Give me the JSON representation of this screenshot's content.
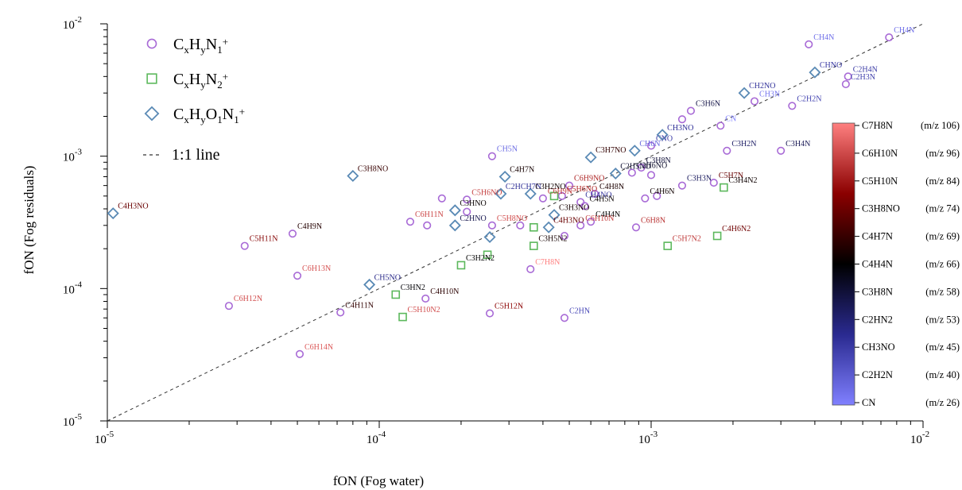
{
  "chart_data": {
    "type": "scatter",
    "xlabel": "fON (Fog water)",
    "ylabel": "fON (Fog residuals)",
    "x_scale": "log",
    "y_scale": "log",
    "xlim": [
      1e-05,
      0.01
    ],
    "ylim": [
      1e-05,
      0.01
    ],
    "ticks": [
      {
        "value": 1e-05,
        "base": "10",
        "exp": "-5"
      },
      {
        "value": 0.0001,
        "base": "10",
        "exp": "-4"
      },
      {
        "value": 0.001,
        "base": "10",
        "exp": "-3"
      },
      {
        "value": 0.01,
        "base": "10",
        "exp": "-2"
      }
    ],
    "reference_line": {
      "label": "1:1 line",
      "style": "dashed",
      "color": "#333333"
    },
    "legend": {
      "placement": "top-left",
      "entries": [
        {
          "marker": "circle",
          "color": "#a86ad6",
          "base": "C",
          "sub1": "x",
          "h": "H",
          "sub2": "y",
          "n": "N",
          "sub3": "1",
          "sup": "+"
        },
        {
          "marker": "square",
          "color": "#5cb85c",
          "base": "C",
          "sub1": "x",
          "h": "H",
          "sub2": "y",
          "n": "N",
          "sub3": "2",
          "sup": "+"
        },
        {
          "marker": "diamond",
          "color": "#5a8ab5",
          "base": "C",
          "sub1": "x",
          "h": "H",
          "sub2": "y",
          "o": "O",
          "sub3": "1",
          "n": "N",
          "sub4": "1",
          "sup": "+"
        }
      ]
    },
    "colorbar": {
      "label_entries": [
        {
          "name": "C7H8N",
          "mz": "(m/z 106)"
        },
        {
          "name": "C6H10N",
          "mz": "(m/z 96)"
        },
        {
          "name": "C5H10N",
          "mz": "(m/z 84)"
        },
        {
          "name": "C3H8NO",
          "mz": "(m/z 74)"
        },
        {
          "name": "C4H7N",
          "mz": "(m/z 69)"
        },
        {
          "name": "C4H4N",
          "mz": "(m/z 66)"
        },
        {
          "name": "C3H8N",
          "mz": "(m/z 58)"
        },
        {
          "name": "C2HN2",
          "mz": "(m/z 53)"
        },
        {
          "name": "CH3NO",
          "mz": "(m/z 45)"
        },
        {
          "name": "C2H2N",
          "mz": "(m/z 40)"
        },
        {
          "name": "CN",
          "mz": "(m/z 26)"
        }
      ],
      "mz_range": [
        26,
        106
      ],
      "color_stops": [
        "#8080ff",
        "#2a2a90",
        "#000000",
        "#8b0000",
        "#ff8080"
      ]
    },
    "series": [
      {
        "marker": "circle",
        "color": "#a86ad6",
        "points": [
          {
            "x": 0.0075,
            "y": 0.0079,
            "label": "CH4N",
            "mz": 30
          },
          {
            "x": 0.0038,
            "y": 0.007,
            "label": "CH4N",
            "mz": 30
          },
          {
            "x": 0.0053,
            "y": 0.004,
            "label": "C2H4N",
            "mz": 42
          },
          {
            "x": 0.0052,
            "y": 0.0035,
            "label": "C2H3N",
            "mz": 41
          },
          {
            "x": 0.0024,
            "y": 0.0026,
            "label": "CH3N",
            "mz": 29
          },
          {
            "x": 0.0033,
            "y": 0.0024,
            "label": "C2H2N",
            "mz": 40
          },
          {
            "x": 0.0018,
            "y": 0.0017,
            "label": "CN",
            "mz": 26
          },
          {
            "x": 0.0014,
            "y": 0.0022,
            "label": "C3H6N",
            "mz": 56
          },
          {
            "x": 0.0013,
            "y": 0.0019,
            "label": "",
            "mz": 54
          },
          {
            "x": 0.0019,
            "y": 0.0011,
            "label": "C3H2N",
            "mz": 52
          },
          {
            "x": 0.003,
            "y": 0.0011,
            "label": "C3H4N",
            "mz": 54
          },
          {
            "x": 0.001,
            "y": 0.0012,
            "label": "CNO",
            "mz": 42
          },
          {
            "x": 0.00026,
            "y": 0.001,
            "label": "CH5N",
            "mz": 31
          },
          {
            "x": 0.00092,
            "y": 0.00082,
            "label": "C3H8N",
            "mz": 58
          },
          {
            "x": 0.00085,
            "y": 0.00075,
            "label": "C2H6NO",
            "mz": 60
          },
          {
            "x": 0.001,
            "y": 0.00072,
            "label": "",
            "mz": 57
          },
          {
            "x": 0.00095,
            "y": 0.00048,
            "label": "C4H6N",
            "mz": 68
          },
          {
            "x": 0.00105,
            "y": 0.0005,
            "label": "",
            "mz": 68
          },
          {
            "x": 0.0013,
            "y": 0.0006,
            "label": "C3H3N",
            "mz": 53
          },
          {
            "x": 0.0017,
            "y": 0.00063,
            "label": "C5H7N",
            "mz": 81
          },
          {
            "x": 0.00062,
            "y": 0.00052,
            "label": "C4H8N",
            "mz": 70
          },
          {
            "x": 0.00055,
            "y": 0.00045,
            "label": "CH4NO",
            "mz": 44
          },
          {
            "x": 0.00057,
            "y": 0.00042,
            "label": "C4H5N",
            "mz": 67
          },
          {
            "x": 0.0005,
            "y": 0.0006,
            "label": "C6H9NO",
            "mz": 92
          },
          {
            "x": 0.00047,
            "y": 0.0005,
            "label": "C5H6NO",
            "mz": 92
          },
          {
            "x": 0.0004,
            "y": 0.00048,
            "label": "C6H9N",
            "mz": 95
          },
          {
            "x": 0.0006,
            "y": 0.00032,
            "label": "C4H4N",
            "mz": 66
          },
          {
            "x": 0.00055,
            "y": 0.0003,
            "label": "C6H10N",
            "mz": 96
          },
          {
            "x": 0.00088,
            "y": 0.00029,
            "label": "C6H8N",
            "mz": 94
          },
          {
            "x": 0.00017,
            "y": 0.00048,
            "label": "",
            "mz": 85
          },
          {
            "x": 0.00021,
            "y": 0.00047,
            "label": "C5H6NO",
            "mz": 96
          },
          {
            "x": 0.00021,
            "y": 0.00038,
            "label": "",
            "mz": 50
          },
          {
            "x": 0.00013,
            "y": 0.00032,
            "label": "C6H11N",
            "mz": 97
          },
          {
            "x": 0.00015,
            "y": 0.0003,
            "label": "",
            "mz": 90
          },
          {
            "x": 0.00026,
            "y": 0.0003,
            "label": "C5H8NO",
            "mz": 98
          },
          {
            "x": 0.00033,
            "y": 0.0003,
            "label": "",
            "mz": 60
          },
          {
            "x": 0.00048,
            "y": 0.00025,
            "label": "",
            "mz": 45
          },
          {
            "x": 0.00036,
            "y": 0.00014,
            "label": "C7H8N",
            "mz": 106
          },
          {
            "x": 4.8e-05,
            "y": 0.00026,
            "label": "C4H9N",
            "mz": 71
          },
          {
            "x": 3.2e-05,
            "y": 0.00021,
            "label": "C5H11N",
            "mz": 85
          },
          {
            "x": 5e-05,
            "y": 0.000125,
            "label": "C6H13N",
            "mz": 99
          },
          {
            "x": 2.8e-05,
            "y": 7.4e-05,
            "label": "C6H12N",
            "mz": 98
          },
          {
            "x": 7.2e-05,
            "y": 6.6e-05,
            "label": "C4H11N",
            "mz": 73
          },
          {
            "x": 5.1e-05,
            "y": 3.2e-05,
            "label": "C6H14N",
            "mz": 100
          },
          {
            "x": 0.000148,
            "y": 8.4e-05,
            "label": "C4H10N",
            "mz": 72
          },
          {
            "x": 0.000255,
            "y": 6.5e-05,
            "label": "C5H12N",
            "mz": 86
          },
          {
            "x": 0.00048,
            "y": 6e-05,
            "label": "C2HN",
            "mz": 39
          }
        ]
      },
      {
        "marker": "square",
        "color": "#5cb85c",
        "points": [
          {
            "x": 0.00185,
            "y": 0.00058,
            "label": "C3H4N2",
            "mz": 68
          },
          {
            "x": 0.00175,
            "y": 0.00025,
            "label": "C4H6N2",
            "mz": 82
          },
          {
            "x": 0.00115,
            "y": 0.00021,
            "label": "C5H7N2",
            "mz": 95
          },
          {
            "x": 0.00044,
            "y": 0.0005,
            "label": "",
            "mz": 55
          },
          {
            "x": 0.00037,
            "y": 0.00021,
            "label": "C3H5N2",
            "mz": 69
          },
          {
            "x": 0.00037,
            "y": 0.00029,
            "label": "",
            "mz": 60
          },
          {
            "x": 0.0002,
            "y": 0.00015,
            "label": "C3H2N2",
            "mz": 66
          },
          {
            "x": 0.00025,
            "y": 0.00018,
            "label": "",
            "mz": 66
          },
          {
            "x": 0.000115,
            "y": 9e-05,
            "label": "C3HN2",
            "mz": 65
          },
          {
            "x": 0.000122,
            "y": 6.1e-05,
            "label": "C5H10N2",
            "mz": 98
          }
        ]
      },
      {
        "marker": "diamond",
        "color": "#5a8ab5",
        "points": [
          {
            "x": 0.004,
            "y": 0.0043,
            "label": "CHNO",
            "mz": 43
          },
          {
            "x": 0.0022,
            "y": 0.003,
            "label": "CH2NO",
            "mz": 44
          },
          {
            "x": 0.0011,
            "y": 0.00145,
            "label": "CH3NO",
            "mz": 45
          },
          {
            "x": 0.00087,
            "y": 0.0011,
            "label": "CH6N",
            "mz": 32
          },
          {
            "x": 0.0006,
            "y": 0.00098,
            "label": "C3H7NO",
            "mz": 73
          },
          {
            "x": 0.00074,
            "y": 0.00074,
            "label": "C2H5NO",
            "mz": 59
          },
          {
            "x": 0.00029,
            "y": 0.0007,
            "label": "C4H7N",
            "mz": 69
          },
          {
            "x": 0.00028,
            "y": 0.00052,
            "label": "C2HCH7N",
            "mz": 45
          },
          {
            "x": 0.00036,
            "y": 0.00052,
            "label": "C3H2NO",
            "mz": 68
          },
          {
            "x": 0.00044,
            "y": 0.00036,
            "label": "C3H3NO",
            "mz": 69
          },
          {
            "x": 0.00042,
            "y": 0.00029,
            "label": "C4H3NO",
            "mz": 81
          },
          {
            "x": 0.00019,
            "y": 0.00039,
            "label": "C3HNO",
            "mz": 67
          },
          {
            "x": 0.00019,
            "y": 0.0003,
            "label": "C2HNO",
            "mz": 55
          },
          {
            "x": 0.000255,
            "y": 0.000245,
            "label": "",
            "mz": 55
          },
          {
            "x": 8e-05,
            "y": 0.00071,
            "label": "C3H8NO",
            "mz": 74
          },
          {
            "x": 1.05e-05,
            "y": 0.00037,
            "label": "C4H3NO",
            "mz": 81
          },
          {
            "x": 9.2e-05,
            "y": 0.000107,
            "label": "CH5NO",
            "mz": 47
          }
        ]
      }
    ]
  }
}
